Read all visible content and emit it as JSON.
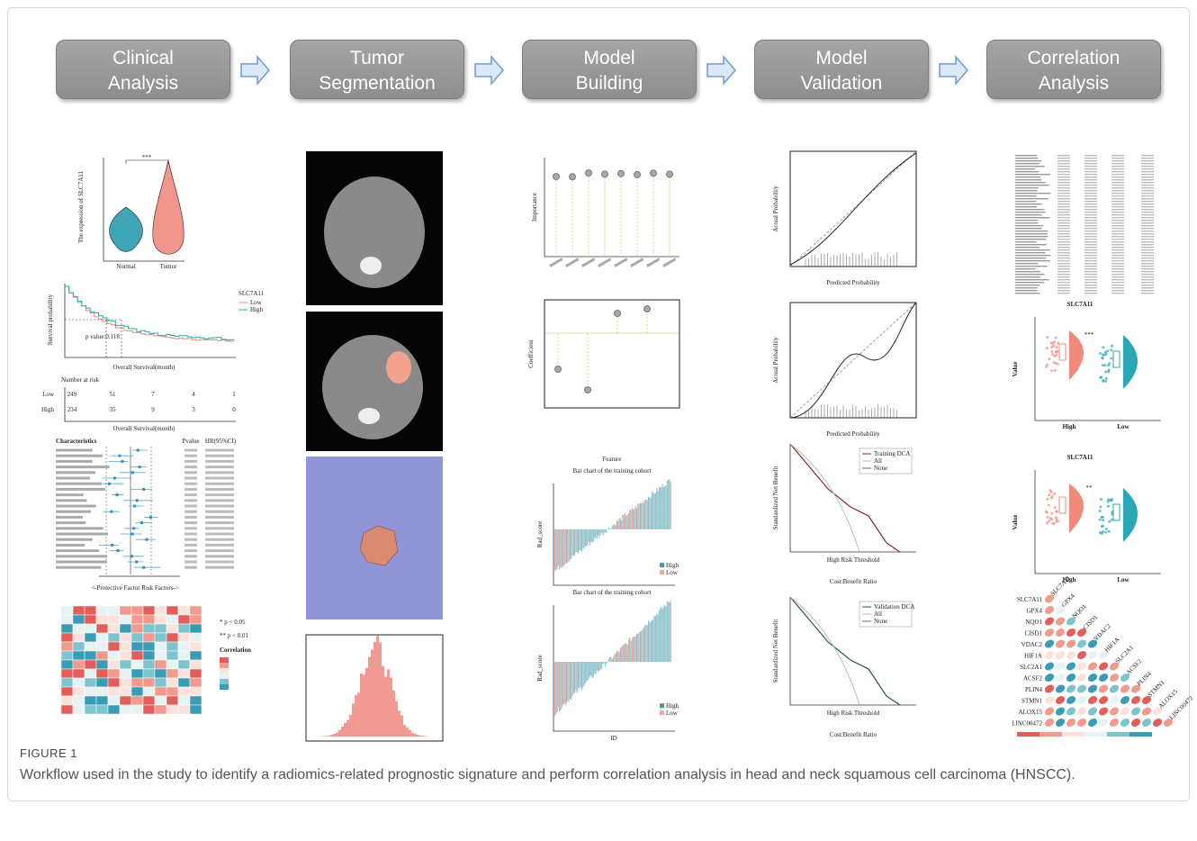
{
  "workflow": [
    [
      "Clinical",
      "Analysis"
    ],
    [
      "Tumor",
      "Segmentation"
    ],
    [
      "Model",
      "Building"
    ],
    [
      "Model",
      "Validation"
    ],
    [
      "Correlation",
      "Analysis"
    ]
  ],
  "panels": {
    "violin": {
      "groups": [
        "Normal",
        "Tumor"
      ],
      "sig": "***",
      "ylabel": "The expression of SLC7A11"
    },
    "survival": {
      "xlabel": "Overall Survival(month)",
      "ylabel": "Survival probability",
      "pvalue": "p value:0.118",
      "legend_title": "SLC7A11",
      "legend": [
        "Low",
        "High"
      ],
      "risk_title": "Number at risk",
      "risk_rows": [
        [
          "Low",
          "249",
          "51",
          "7",
          "4",
          "1"
        ],
        [
          "High",
          "234",
          "35",
          "9",
          "3",
          "0"
        ]
      ]
    },
    "forest": {
      "header": [
        "Characteristics",
        "Pvalue",
        "HR(95%CI)"
      ],
      "footer": "<-Protective Factor   Risk Factors->"
    },
    "heatmap": {
      "sig": [
        "* p < 0.05",
        "** p < 0.01"
      ],
      "legend_title": "Correlation"
    },
    "lollipop": {
      "ylabel": "Importance"
    },
    "coef": {
      "ylabel": "Coefficient",
      "xlabel": "Feature"
    },
    "bars": [
      {
        "title": "Bar chart of the training cohort",
        "ylabel": "Rad_score",
        "legend": [
          "High",
          "Low"
        ]
      },
      {
        "title": "Bar chart of the training cohort",
        "ylabel": "Rad_score",
        "legend": [
          "High",
          "Low"
        ],
        "xlabel": "ID"
      }
    ],
    "calibration": [
      {
        "xlabel": "Predicted Probability",
        "ylabel": "Actual Probability"
      },
      {
        "xlabel": "Predicted Probability",
        "ylabel": "Actual Probability"
      }
    ],
    "dca": [
      {
        "xlabel": "High Risk Threshold",
        "xlabel2": "Cost:Benefit Ratio",
        "ylabel": "Standardized Net Benefit",
        "legend": [
          "Training DCA",
          "All",
          "None"
        ]
      },
      {
        "xlabel": "High Risk Threshold",
        "xlabel2": "Cost:Benefit Ratio",
        "ylabel": "Standardized Net Benefit",
        "legend": [
          "Validation DCA",
          "All",
          "None"
        ]
      }
    ],
    "rain": [
      {
        "title": "SLC7A11",
        "ylabel": "Value",
        "groups": [
          "High",
          "Low"
        ],
        "sig": "***"
      },
      {
        "title": "SLC7A11",
        "ylabel": "Value",
        "groups": [
          "High",
          "Low"
        ],
        "sig": "**"
      }
    ],
    "corr": {
      "genes": [
        "SLC7A11",
        "GPX4",
        "NQO1",
        "CISD1",
        "VDAC2",
        "HIF1A",
        "SLC2A1",
        "ACSF2",
        "PLIN4",
        "STMN1",
        "ALOX15",
        "LINC00472"
      ]
    }
  },
  "caption": {
    "label": "FIGURE 1",
    "text": "Workflow used in the study to identify a radiomics-related prognostic signature and perform correlation analysis in head and neck squamous cell carcinoma (HNSCC)."
  }
}
